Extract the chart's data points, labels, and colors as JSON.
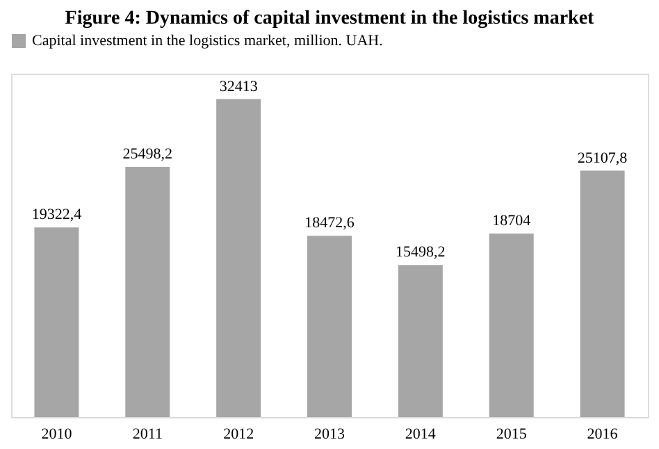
{
  "chart_data": {
    "type": "bar",
    "title": "Figure 4: Dynamics of capital investment in the logistics market",
    "categories": [
      "2010",
      "2011",
      "2012",
      "2013",
      "2014",
      "2015",
      "2016"
    ],
    "series": [
      {
        "name": "Capital investment in the logistics market, million. UAH.",
        "color": "#a6a6a6",
        "values": [
          19322.4,
          25498.2,
          32413,
          18472.6,
          15498.2,
          18704,
          25107.8
        ],
        "value_labels": [
          "19322,4",
          "25498,2",
          "32413",
          "18472,6",
          "15498,2",
          "18704",
          "25107,8"
        ]
      }
    ],
    "legend": "top",
    "grid": false
  }
}
